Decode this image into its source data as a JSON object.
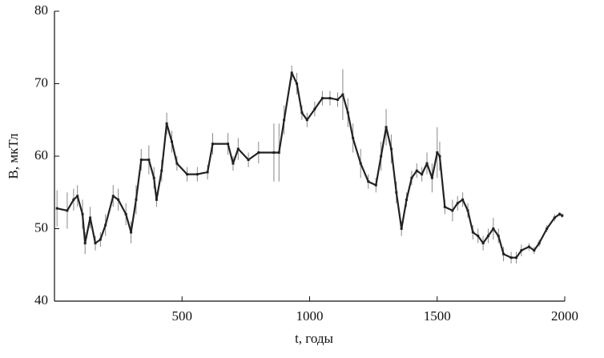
{
  "chart_data": {
    "type": "line",
    "x_label": "t, годы",
    "y_label": "B, мкТл",
    "x": [
      10,
      50,
      75,
      90,
      110,
      120,
      140,
      160,
      180,
      200,
      230,
      250,
      280,
      300,
      320,
      340,
      370,
      390,
      400,
      420,
      440,
      460,
      480,
      520,
      560,
      600,
      620,
      680,
      700,
      720,
      760,
      800,
      860,
      880,
      900,
      930,
      950,
      970,
      990,
      1020,
      1050,
      1080,
      1110,
      1130,
      1150,
      1170,
      1200,
      1230,
      1260,
      1280,
      1300,
      1320,
      1340,
      1360,
      1380,
      1400,
      1420,
      1440,
      1460,
      1480,
      1500,
      1510,
      1530,
      1560,
      1580,
      1600,
      1620,
      1640,
      1660,
      1680,
      1700,
      1720,
      1740,
      1760,
      1790,
      1810,
      1830,
      1860,
      1880,
      1900,
      1930,
      1960,
      1980,
      1990
    ],
    "series": [
      {
        "color": "#222222",
        "error_color": "#888888",
        "values": [
          52.8,
          52.5,
          54,
          54.5,
          52,
          48,
          51.5,
          48,
          48.5,
          50.5,
          54.5,
          54,
          52,
          49.5,
          54,
          59.5,
          59.5,
          57,
          54,
          58,
          64.5,
          62,
          59,
          57.5,
          57.5,
          57.8,
          61.7,
          61.7,
          59,
          61,
          59.5,
          60.5,
          60.5,
          60.5,
          65,
          71.5,
          70,
          66,
          65,
          66.5,
          68,
          68,
          67.8,
          68.5,
          66,
          62.5,
          59,
          56.5,
          56,
          60,
          64,
          61,
          55,
          50,
          54,
          57,
          58,
          57.5,
          59,
          57,
          60.5,
          60,
          53,
          52.5,
          53.5,
          54,
          52.5,
          49.5,
          49,
          48,
          49,
          50,
          49,
          46.5,
          46,
          46,
          47,
          47.5,
          47,
          48,
          50,
          51.5,
          52,
          51.8
        ],
        "errors": [
          2.5,
          2.5,
          1.5,
          1.5,
          2,
          1.5,
          1.5,
          1,
          1,
          1.5,
          1.5,
          1.5,
          1.5,
          1.5,
          2,
          1.5,
          2,
          1.5,
          1,
          1.5,
          1.5,
          1.5,
          1,
          1,
          1,
          1,
          1.5,
          1.5,
          1,
          1.5,
          1,
          1.5,
          4,
          4,
          2,
          1,
          1.5,
          1,
          1,
          1,
          1,
          1,
          1,
          3.5,
          2,
          2,
          2,
          1,
          1,
          2,
          2.5,
          2,
          1.5,
          1,
          1,
          1,
          1,
          1,
          1.5,
          2,
          3.5,
          2,
          1,
          1.5,
          1,
          1,
          1,
          1,
          1,
          1,
          1,
          1.5,
          1,
          1,
          0.8,
          0.8,
          0.8,
          0.5,
          0.5,
          0.5,
          0.5,
          0.5,
          0.3,
          0.3
        ]
      }
    ],
    "xlim": [
      0,
      2000
    ],
    "xticks": [
      500,
      1000,
      1500,
      2000
    ],
    "ylim": [
      40,
      80
    ],
    "yticks": [
      40,
      50,
      60,
      70,
      80
    ]
  }
}
